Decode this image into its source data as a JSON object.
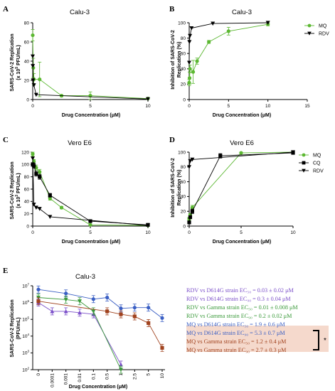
{
  "panels": {
    "A": {
      "letter": "A",
      "title": "Calu-3",
      "xlabel": "Drug Concentration (μM)",
      "ylabel_main": "SARS-CoV-2 Replication",
      "ylabel_unit": "(x 10",
      "ylabel_exp": "5",
      "ylabel_unit2": " PFU/mL)"
    },
    "B": {
      "letter": "B",
      "title": "Calu-3",
      "xlabel": "Drug Concentration (μM)",
      "ylabel_main": "Inhibition of SARS-CoV-2",
      "ylabel_unit": "Replication (%)"
    },
    "C": {
      "letter": "C",
      "title": "Vero E6",
      "xlabel": "Drug Concentration (μM)",
      "ylabel_main": "SARS-CoV-2 Replication",
      "ylabel_unit": "(x 10",
      "ylabel_exp": "3",
      "ylabel_unit2": " PFU/mL)"
    },
    "D": {
      "letter": "D",
      "title": "Vero E6",
      "xlabel": "Drug Concentration (μM)",
      "ylabel_main": "Inhibition of SARS-CoV-2",
      "ylabel_unit": "Replication (%)"
    },
    "E": {
      "letter": "E",
      "title": "Calu-3",
      "xlabel": "Drug Concentration (μM)",
      "ylabel_main": "SARS-CoV-2 Replication",
      "ylabel_unit": "(PFU/mL)"
    }
  },
  "annotations": [
    {
      "text": "RDV vs D614G strain EC₅₀ = 0.03 ± 0.02 μM",
      "color": "#7b4fc9"
    },
    {
      "text": "RDV vs D614G strain EC₉₀ = 0.3 ± 0.04 μM",
      "color": "#7b4fc9"
    },
    {
      "text": "RDV vs Gamma strain EC₅₀ = 0.01 ± 0.008 μM",
      "color": "#3a9a3a"
    },
    {
      "text": "RDV vs Gamma strain EC₉₀ = 0.2 ± 0.02 μM",
      "color": "#3a9a3a"
    },
    {
      "text": "MQ vs D614G strain EC₅₀ = 1.9 ± 0.6 μM",
      "color": "#3a5fc4"
    },
    {
      "text": "MQ vs D614G strain EC₉₀ = 5.3 ± 0.7 μM",
      "color": "#3a5fc4"
    },
    {
      "text": "MQ vs Gamma strain EC₅₀ = 1.2 ± 0.4 μM",
      "color": "#a0421e"
    },
    {
      "text": "MQ vs Gamma strain EC₉₀ = 2.7 ± 0.3 μM",
      "color": "#a0421e"
    }
  ],
  "significance_mark": "*",
  "chart_data": [
    {
      "panel": "A",
      "type": "line",
      "xlim": [
        0,
        10
      ],
      "ylim": [
        0,
        80
      ],
      "xticks": [
        0,
        5,
        10
      ],
      "yticks": [
        0,
        20,
        40,
        60,
        80
      ],
      "series": [
        {
          "name": "MQ",
          "color": "#5cb832",
          "marker": "circle",
          "x": [
            0,
            0.05,
            0.1,
            0.6,
            2.5,
            5,
            10
          ],
          "y": [
            67,
            33,
            21,
            21,
            4,
            4,
            1
          ],
          "err": [
            6,
            10,
            6,
            18,
            1,
            4,
            0.5
          ]
        },
        {
          "name": "RDV",
          "color": "#000000",
          "marker": "tri-down",
          "x": [
            0,
            0.01,
            0.03,
            0.1,
            0.3,
            10
          ],
          "y": [
            45,
            35,
            20,
            15,
            5,
            0.5
          ],
          "err": [
            0,
            0,
            0,
            0,
            0,
            0
          ]
        }
      ]
    },
    {
      "panel": "B",
      "type": "line",
      "xlim": [
        0,
        15
      ],
      "ylim": [
        0,
        100
      ],
      "xticks": [
        0,
        5,
        10,
        15
      ],
      "yticks": [
        0,
        20,
        40,
        60,
        80,
        100
      ],
      "series": [
        {
          "name": "MQ",
          "color": "#5cb832",
          "marker": "circle",
          "x": [
            0,
            0.05,
            0.1,
            0.5,
            1,
            2.5,
            5,
            10
          ],
          "y": [
            22,
            28,
            40,
            36,
            50,
            75,
            89,
            98
          ],
          "err": [
            4,
            8,
            5,
            15,
            4,
            2,
            5,
            2
          ]
        },
        {
          "name": "RDV",
          "color": "#000000",
          "marker": "tri-down",
          "x": [
            0,
            0.03,
            0.1,
            0.3,
            3,
            10
          ],
          "y": [
            48,
            75,
            83,
            93,
            99,
            100
          ],
          "err": [
            0,
            0,
            0,
            0,
            0,
            0
          ]
        }
      ]
    },
    {
      "panel": "C",
      "type": "line",
      "xlim": [
        0,
        10
      ],
      "ylim": [
        0,
        120
      ],
      "xticks": [
        0,
        5,
        10
      ],
      "yticks": [
        0,
        20,
        40,
        60,
        80,
        100,
        120
      ],
      "series": [
        {
          "name": "MQ",
          "color": "#5cb832",
          "marker": "circle",
          "x": [
            0,
            0.1,
            0.3,
            0.6,
            1.5,
            2.5,
            5,
            10
          ],
          "y": [
            117,
            105,
            95,
            88,
            45,
            30,
            2,
            1
          ],
          "err": [
            3,
            3,
            4,
            4,
            3,
            2,
            1,
            1
          ]
        },
        {
          "name": "CQ",
          "color": "#000000",
          "marker": "square",
          "x": [
            0,
            0.1,
            0.3,
            0.6,
            1.5,
            5,
            10
          ],
          "y": [
            100,
            98,
            85,
            80,
            50,
            8,
            2
          ],
          "err": [
            3,
            4,
            4,
            4,
            3,
            1,
            1
          ]
        },
        {
          "name": "RDV",
          "color": "#000000",
          "marker": "tri-down",
          "x": [
            0,
            0.1,
            0.3,
            0.6,
            1.5,
            10
          ],
          "y": [
            110,
            35,
            30,
            28,
            15,
            1
          ],
          "err": [
            0,
            0,
            0,
            0,
            0,
            0
          ]
        }
      ]
    },
    {
      "panel": "D",
      "type": "line",
      "xlim": [
        0,
        10
      ],
      "ylim": [
        0,
        100
      ],
      "xticks": [
        0,
        5,
        10
      ],
      "yticks": [
        0,
        20,
        40,
        60,
        80,
        100
      ],
      "series": [
        {
          "name": "MQ",
          "color": "#5cb832",
          "marker": "circle",
          "x": [
            0,
            0.1,
            0.3,
            5,
            10
          ],
          "y": [
            10,
            15,
            25,
            99,
            100
          ],
          "err": [
            2,
            2,
            3,
            1,
            1
          ]
        },
        {
          "name": "CQ",
          "color": "#000000",
          "marker": "square",
          "x": [
            0,
            0.1,
            0.3,
            3,
            10
          ],
          "y": [
            5,
            12,
            20,
            95,
            99
          ],
          "err": [
            2,
            2,
            3,
            3,
            1
          ]
        },
        {
          "name": "RDV",
          "color": "#000000",
          "marker": "tri-down",
          "x": [
            0,
            0.1,
            0.3,
            10
          ],
          "y": [
            80,
            88,
            90,
            100
          ],
          "err": [
            0,
            0,
            0,
            0
          ]
        }
      ]
    },
    {
      "panel": "E",
      "type": "line",
      "x_categories": [
        "0",
        "0.0001",
        "0.001",
        "0.01",
        "0.1",
        "0.5",
        "1",
        "2.5",
        "5",
        "10"
      ],
      "ylog": true,
      "ylim_exp": [
        2,
        7
      ],
      "yticks": [
        "10^2",
        "10^3",
        "10^4",
        "10^5",
        "10^6",
        "10^7"
      ],
      "series": [
        {
          "name": "MQ vs D614G",
          "color": "#3a5fc4",
          "marker": "circle",
          "points": [
            [
              0,
              6000000.0
            ],
            [
              2,
              3500000.0
            ],
            [
              4,
              1600000.0
            ],
            [
              5,
              2000000.0
            ],
            [
              6,
              450000.0
            ],
            [
              7,
              500000.0
            ],
            [
              8,
              500000.0
            ],
            [
              9,
              120000.0
            ]
          ]
        },
        {
          "name": "RDV vs D614G",
          "color": "#7b4fc9",
          "marker": "tri-up",
          "points": [
            [
              0,
              1000000.0
            ],
            [
              1,
              300000.0
            ],
            [
              2,
              300000.0
            ],
            [
              3,
              250000.0
            ],
            [
              4,
              200000.0
            ],
            [
              6,
              200
            ]
          ]
        },
        {
          "name": "RDV vs Gamma",
          "color": "#3a9a3a",
          "marker": "tri-down",
          "points": [
            [
              0,
              2000000.0
            ],
            [
              2,
              1500000.0
            ],
            [
              3,
              1200000.0
            ],
            [
              4,
              300000.0
            ],
            [
              6,
              100
            ]
          ]
        },
        {
          "name": "MQ vs Gamma",
          "color": "#a0421e",
          "marker": "square",
          "points": [
            [
              0,
              1200000.0
            ],
            [
              5,
              300000.0
            ],
            [
              6,
              200000.0
            ],
            [
              7,
              150000.0
            ],
            [
              8,
              60000.0
            ],
            [
              9,
              2000
            ]
          ]
        }
      ]
    }
  ]
}
